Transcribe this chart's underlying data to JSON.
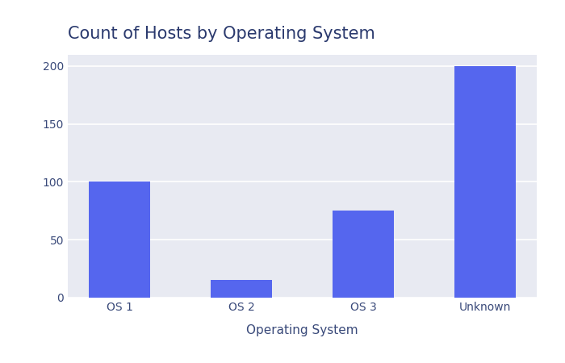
{
  "title": "Count of Hosts by Operating System",
  "xlabel": "Operating System",
  "ylabel": "",
  "categories": [
    "OS 1",
    "OS 2",
    "OS 3",
    "Unknown"
  ],
  "values": [
    100,
    15,
    75,
    200
  ],
  "bar_color": "#5566ee",
  "figure_bg_color": "#ffffff",
  "plot_bg_color": "#e8eaf2",
  "title_color": "#2b3a6e",
  "label_color": "#3a4a7a",
  "tick_color": "#3a4a7a",
  "grid_color": "#ffffff",
  "ylim": [
    0,
    210
  ],
  "yticks": [
    0,
    50,
    100,
    150,
    200
  ],
  "title_fontsize": 15,
  "label_fontsize": 11,
  "tick_fontsize": 10,
  "bar_width": 0.5
}
